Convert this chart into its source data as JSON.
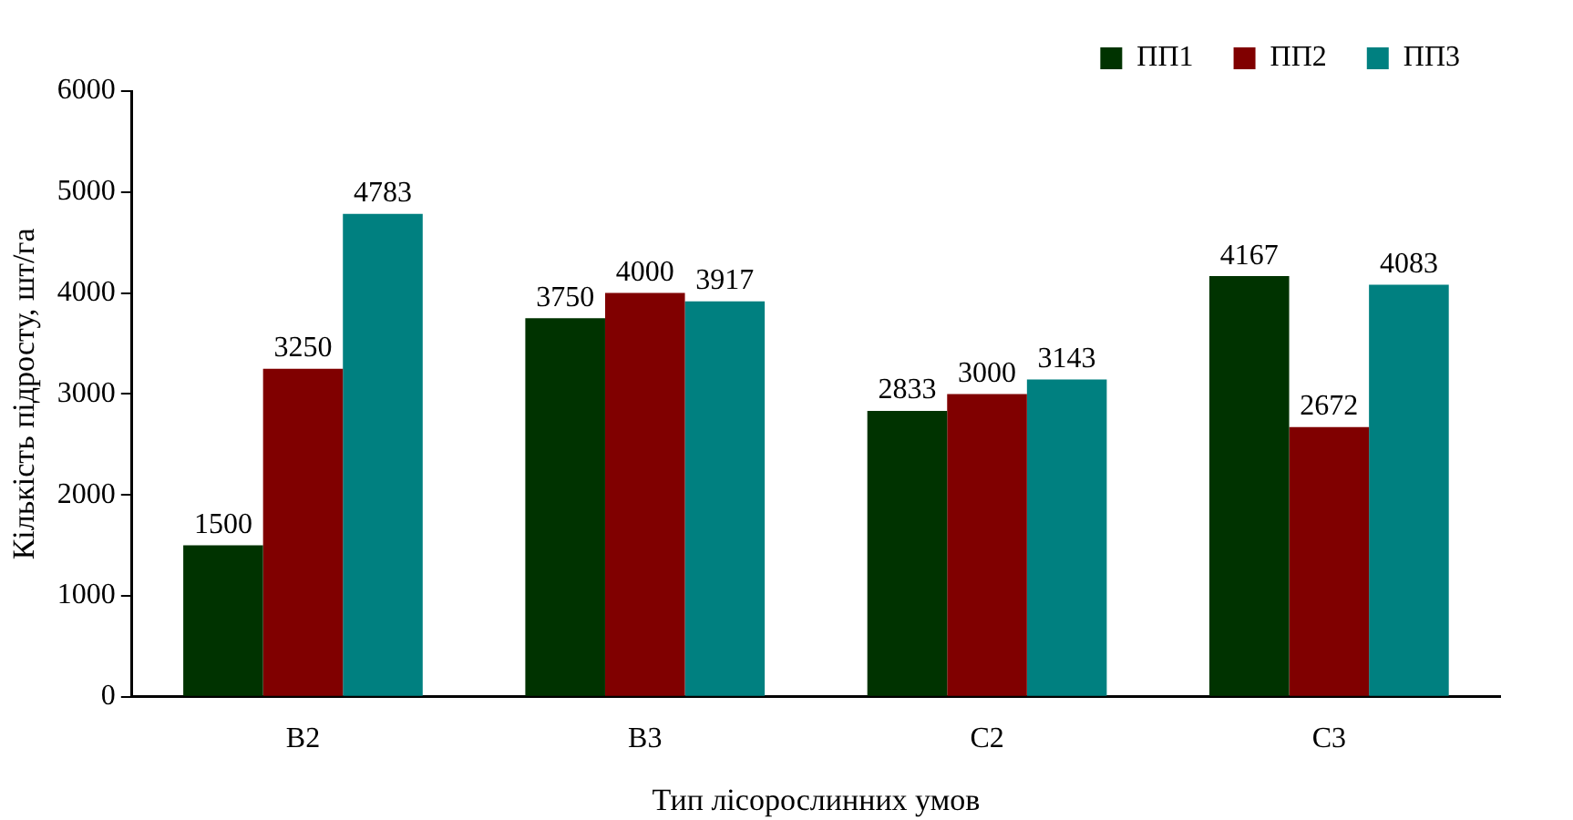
{
  "chart_data": {
    "type": "bar",
    "xlabel": "Тип лісорослинних умов",
    "ylabel": "Кількість підросту, шт/га",
    "categories": [
      "B2",
      "B3",
      "C2",
      "C3"
    ],
    "series": [
      {
        "name": "ПП1",
        "color": "#003300",
        "values": [
          1500,
          3750,
          2833,
          4167
        ]
      },
      {
        "name": "ПП2",
        "color": "#800000",
        "values": [
          3250,
          4000,
          3000,
          2672
        ]
      },
      {
        "name": "ПП3",
        "color": "#008080",
        "values": [
          4783,
          3917,
          3143,
          4083
        ]
      }
    ],
    "ylim": [
      0,
      6000
    ],
    "yticks": [
      0,
      1000,
      2000,
      3000,
      4000,
      5000,
      6000
    ],
    "grid": false,
    "legend": "top right",
    "data_labels": true
  }
}
